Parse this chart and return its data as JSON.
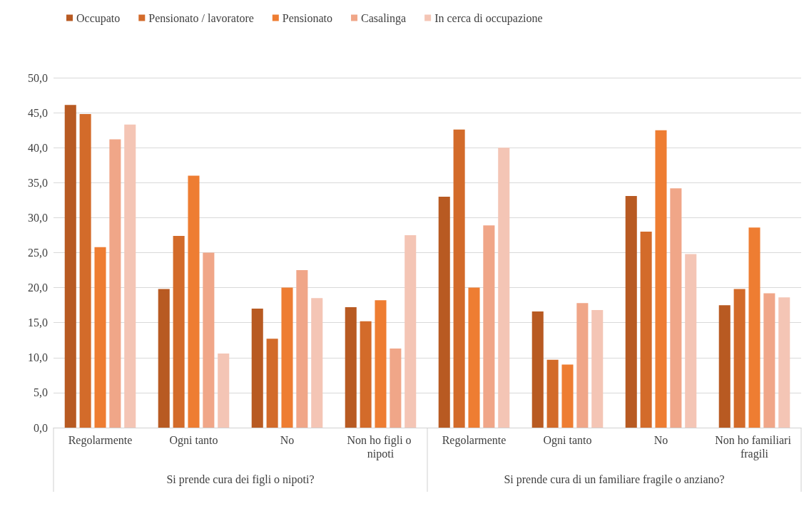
{
  "chart_data": {
    "type": "bar",
    "categories": [
      "Regolarmente",
      "Ogni tanto",
      "No",
      "Non ho figli o nipoti",
      "Regolarmente",
      "Ogni tanto",
      "No",
      "Non ho familiari fragili"
    ],
    "series": [
      {
        "name": "Occupato",
        "color": "#b85a22",
        "values": [
          46.1,
          19.8,
          17.0,
          17.2,
          33.0,
          16.6,
          33.1,
          17.5
        ]
      },
      {
        "name": "Pensionato / lavoratore",
        "color": "#d36b2a",
        "values": [
          44.8,
          27.4,
          12.7,
          15.2,
          42.6,
          9.7,
          28.0,
          19.8
        ]
      },
      {
        "name": "Pensionato",
        "color": "#ee7d32",
        "values": [
          25.8,
          36.0,
          20.0,
          18.2,
          20.0,
          9.0,
          42.5,
          28.6
        ]
      },
      {
        "name": "Casalinga",
        "color": "#f0a688",
        "values": [
          41.2,
          25.0,
          22.5,
          11.3,
          28.9,
          17.8,
          34.2,
          19.2
        ]
      },
      {
        "name": "In cerca di occupazione",
        "color": "#f4c5b5",
        "values": [
          43.3,
          10.6,
          18.5,
          27.5,
          40.0,
          16.8,
          24.8,
          18.6
        ]
      }
    ],
    "ylim": [
      0,
      50
    ],
    "yticks": [
      {
        "value": 0,
        "label": "0,0"
      },
      {
        "value": 5,
        "label": "5,0"
      },
      {
        "value": 10,
        "label": "10,0"
      },
      {
        "value": 15,
        "label": "15,0"
      },
      {
        "value": 20,
        "label": "20,0"
      },
      {
        "value": 25,
        "label": "25,0"
      },
      {
        "value": 30,
        "label": "30,0"
      },
      {
        "value": 35,
        "label": "35,0"
      },
      {
        "value": 40,
        "label": "40,0"
      },
      {
        "value": 45,
        "label": "45,0"
      },
      {
        "value": 50,
        "label": "50,0"
      }
    ],
    "grid": "y",
    "legend": "top left",
    "annotations": [
      "Si prende cura dei figli o nipoti?",
      "Si prende cura di un familiare fragile o anziano?"
    ]
  }
}
